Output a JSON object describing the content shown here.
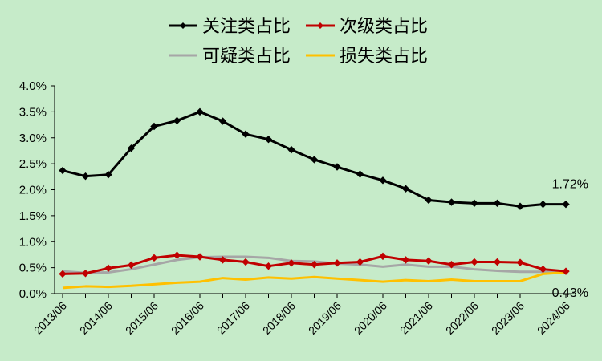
{
  "chart_data": {
    "type": "line",
    "title": "",
    "xlabel": "",
    "ylabel": "",
    "ylim": [
      0,
      4
    ],
    "y_ticks": [
      "0.0%",
      "0.5%",
      "1.0%",
      "1.5%",
      "2.0%",
      "2.5%",
      "3.0%",
      "3.5%",
      "4.0%"
    ],
    "x_tick_labels": [
      "2013/06",
      "2014/06",
      "2015/06",
      "2016/06",
      "2017/06",
      "2018/06",
      "2019/06",
      "2020/06",
      "2021/06",
      "2022/06",
      "2023/06",
      "2024/06"
    ],
    "grid": false,
    "legend_position": "top",
    "series": [
      {
        "name": "关注类占比",
        "color": "#000000",
        "marker": "diamond",
        "values": [
          2.37,
          2.26,
          2.29,
          2.8,
          3.22,
          3.33,
          3.5,
          3.32,
          3.07,
          2.97,
          2.77,
          2.58,
          2.44,
          2.3,
          2.18,
          2.02,
          1.8,
          1.76,
          1.74,
          1.74,
          1.68,
          1.72,
          1.72
        ]
      },
      {
        "name": "次级类占比",
        "color": "#c00000",
        "marker": "diamond",
        "values": [
          0.38,
          0.39,
          0.49,
          0.55,
          0.69,
          0.74,
          0.71,
          0.65,
          0.61,
          0.53,
          0.59,
          0.56,
          0.59,
          0.61,
          0.72,
          0.65,
          0.63,
          0.56,
          0.61,
          0.61,
          0.6,
          0.47,
          0.43
        ]
      },
      {
        "name": "可疑类占比",
        "color": "#a6a6a6",
        "marker": "none",
        "values": [
          0.43,
          0.4,
          0.41,
          0.47,
          0.56,
          0.65,
          0.7,
          0.71,
          0.71,
          0.69,
          0.63,
          0.62,
          0.58,
          0.56,
          0.52,
          0.56,
          0.52,
          0.52,
          0.47,
          0.44,
          0.42,
          0.42,
          0.42
        ]
      },
      {
        "name": "损失类占比",
        "color": "#ffc000",
        "marker": "none",
        "values": [
          0.11,
          0.14,
          0.13,
          0.15,
          0.18,
          0.21,
          0.23,
          0.3,
          0.27,
          0.31,
          0.29,
          0.32,
          0.29,
          0.26,
          0.23,
          0.26,
          0.24,
          0.27,
          0.24,
          0.24,
          0.24,
          0.38,
          0.41
        ]
      }
    ],
    "annotations": [
      {
        "text": "1.72%",
        "series": 0,
        "point": 22
      },
      {
        "text": "0.43%",
        "series": 1,
        "point": 22
      }
    ]
  }
}
